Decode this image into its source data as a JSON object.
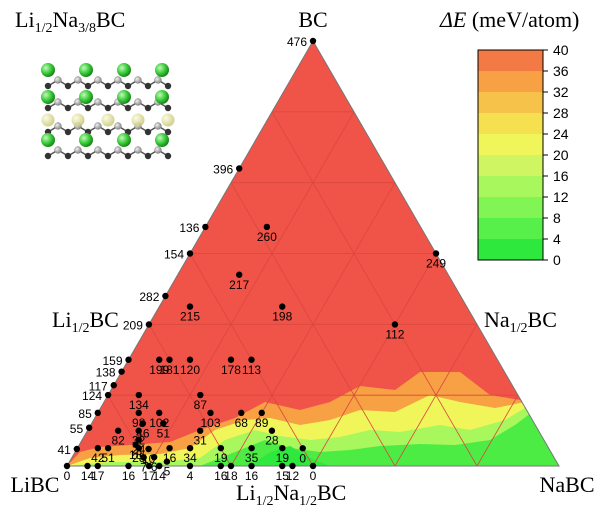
{
  "chart_data": {
    "type": "ternary-heatmap",
    "quantity": "ΔE",
    "units": "(meV/atom)",
    "colorbar": {
      "ticks": [
        0,
        4,
        8,
        12,
        16,
        20,
        24,
        28,
        32,
        36,
        40
      ],
      "band_colors": [
        "#2fe83d",
        "#57f04a",
        "#80f554",
        "#a8f75c",
        "#cff562",
        "#f0f55a",
        "#f5e050",
        "#f7c24a",
        "#f7a044",
        "#f47a45",
        "#f05348"
      ]
    },
    "vertex_labels": {
      "top": {
        "base": "BC"
      },
      "left": {
        "base": "LiBC"
      },
      "right": {
        "base": "NaBC"
      }
    },
    "edge_labels": {
      "left_mid": {
        "base": "Li",
        "sub": "1/2",
        "rest": "BC"
      },
      "right_mid": {
        "base": "Na",
        "sub": "1/2",
        "rest": "BC"
      },
      "bottom_mid": {
        "base": "Li",
        "sub": "1/2",
        "base2": "Na",
        "sub2": "1/2",
        "rest": "BC"
      }
    },
    "structure_label": {
      "base": "Li",
      "sub": "1/2",
      "base2": "Na",
      "sub2": "3/8",
      "rest": "BC"
    },
    "points": [
      {
        "na": 0,
        "bc": 1,
        "e": 476
      },
      {
        "na": 0,
        "bc": 0.7,
        "e": 396
      },
      {
        "na": 0,
        "bc": 0.5625,
        "e": 136
      },
      {
        "na": 0,
        "bc": 0.5,
        "e": 154
      },
      {
        "na": 0,
        "bc": 0.4,
        "e": 282
      },
      {
        "na": 0,
        "bc": 0.333,
        "e": 209
      },
      {
        "na": 0,
        "bc": 0.25,
        "e": 159
      },
      {
        "na": 0,
        "bc": 0.222,
        "e": 138
      },
      {
        "na": 0,
        "bc": 0.19,
        "e": 117
      },
      {
        "na": 0,
        "bc": 0.167,
        "e": 124
      },
      {
        "na": 0,
        "bc": 0.125,
        "e": 85
      },
      {
        "na": 0,
        "bc": 0.09,
        "e": 55
      },
      {
        "na": 0,
        "bc": 0.04,
        "e": 41
      },
      {
        "na": 0,
        "bc": 0,
        "e": 0
      },
      {
        "na": 0.125,
        "bc": 0.5625,
        "e": 260
      },
      {
        "na": 0.125,
        "bc": 0.45,
        "e": 217
      },
      {
        "na": 0.0625,
        "bc": 0.375,
        "e": 215
      },
      {
        "na": 0.25,
        "bc": 0.375,
        "e": 198
      },
      {
        "na": 0.5,
        "bc": 0.5,
        "e": 249
      },
      {
        "na": 0.5,
        "bc": 0.333,
        "e": 112
      },
      {
        "na": 0.0625,
        "bc": 0.25,
        "e": 199
      },
      {
        "na": 0.0833,
        "bc": 0.25,
        "e": 181
      },
      {
        "na": 0.125,
        "bc": 0.25,
        "e": 120
      },
      {
        "na": 0.2083,
        "bc": 0.25,
        "e": 178
      },
      {
        "na": 0.25,
        "bc": 0.25,
        "e": 113
      },
      {
        "na": 0.0625,
        "bc": 0.167,
        "e": 134
      },
      {
        "na": 0.0833,
        "bc": 0.125,
        "e": 98
      },
      {
        "na": 0.125,
        "bc": 0.125,
        "e": 102
      },
      {
        "na": 0.1875,
        "bc": 0.167,
        "e": 87
      },
      {
        "na": 0.2292,
        "bc": 0.125,
        "e": 103
      },
      {
        "na": 0.3333,
        "bc": 0.125,
        "e": 89
      },
      {
        "na": 0.2917,
        "bc": 0.125,
        "e": 68
      },
      {
        "na": 0.0625,
        "bc": 0.083,
        "e": 82
      },
      {
        "na": 0.0625,
        "bc": 0.042,
        "e": 51
      },
      {
        "na": 0.1458,
        "bc": 0.1,
        "e": 51
      },
      {
        "na": 0.1042,
        "bc": 0.1,
        "e": 46
      },
      {
        "na": 0.1042,
        "bc": 0.083,
        "e": 32
      },
      {
        "na": 0.1146,
        "bc": 0.062,
        "e": 24
      },
      {
        "na": 0.1146,
        "bc": 0.05,
        "e": 18
      },
      {
        "na": 0.1458,
        "bc": 0.04,
        "e": 10
      },
      {
        "na": 0.1458,
        "bc": 0.02,
        "e": 7
      },
      {
        "na": 0.1667,
        "bc": 0.0208,
        "e": 6
      },
      {
        "na": 0.1979,
        "bc": 0.0104,
        "e": 5
      },
      {
        "na": 0.2292,
        "bc": 0.083,
        "e": 31
      },
      {
        "na": 0.2292,
        "bc": 0.042,
        "e": 34
      },
      {
        "na": 0.1875,
        "bc": 0.042,
        "e": 16
      },
      {
        "na": 0.2917,
        "bc": 0.042,
        "e": 19
      },
      {
        "na": 0.375,
        "bc": 0.083,
        "e": 28
      },
      {
        "na": 0.3542,
        "bc": 0.042,
        "e": 35
      },
      {
        "na": 0.4167,
        "bc": 0.042,
        "e": 19
      },
      {
        "na": 0.0417,
        "bc": 0.042,
        "e": 42
      },
      {
        "na": 0.125,
        "bc": 0.042,
        "e": 28
      },
      {
        "na": 0.4583,
        "bc": 0.0417,
        "e": 0
      },
      {
        "na": 0.5,
        "bc": 0,
        "e": 0
      },
      {
        "na": 0.0417,
        "bc": 0,
        "e": 14
      },
      {
        "na": 0.0625,
        "bc": 0,
        "e": 17
      },
      {
        "na": 0.125,
        "bc": 0,
        "e": 16
      },
      {
        "na": 0.1667,
        "bc": 0,
        "e": 17
      },
      {
        "na": 0.1875,
        "bc": 0,
        "e": 14
      },
      {
        "na": 0.25,
        "bc": 0,
        "e": 4
      },
      {
        "na": 0.3125,
        "bc": 0,
        "e": 16
      },
      {
        "na": 0.3333,
        "bc": 0,
        "e": 18
      },
      {
        "na": 0.375,
        "bc": 0,
        "e": 16
      },
      {
        "na": 0.4375,
        "bc": 0,
        "e": 15
      },
      {
        "na": 0.4583,
        "bc": 0,
        "e": 12
      }
    ]
  }
}
